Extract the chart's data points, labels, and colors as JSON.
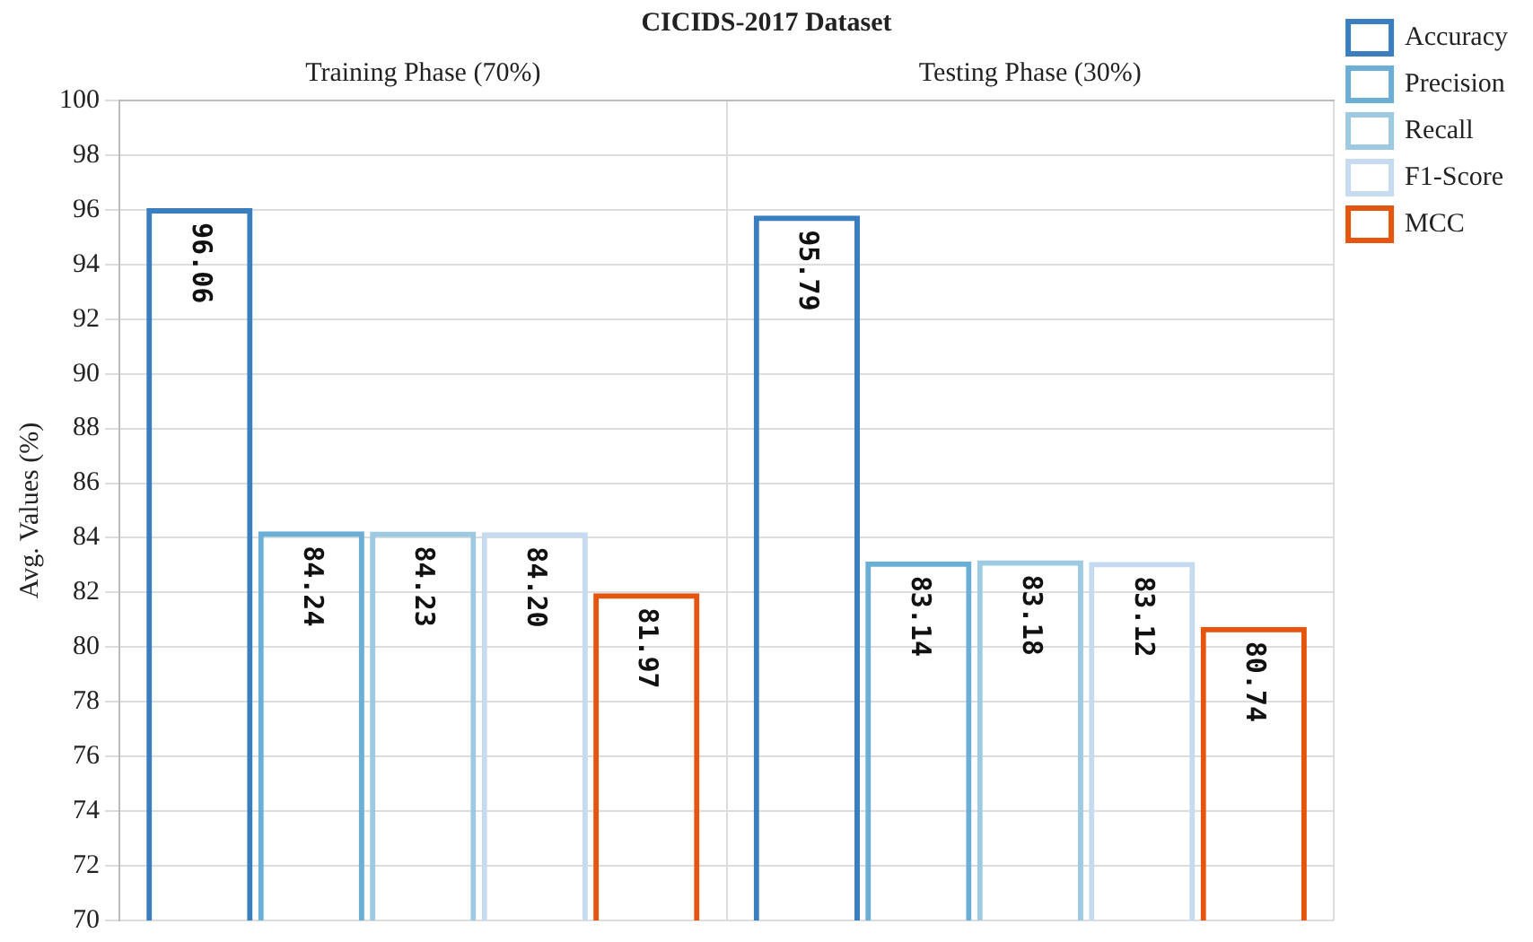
{
  "chart_data": {
    "type": "bar",
    "title": "CICIDS-2017 Dataset",
    "ylabel": "Avg. Values (%)",
    "categories": [
      "Training Phase (70%)",
      "Testing Phase (30%)"
    ],
    "ylim": [
      70,
      100
    ],
    "yticks": [
      70,
      72,
      74,
      76,
      78,
      80,
      82,
      84,
      86,
      88,
      90,
      92,
      94,
      96,
      98,
      100
    ],
    "grid": true,
    "legend": "top right",
    "series": [
      {
        "name": "Accuracy",
        "color": "#3a7ebf",
        "values": [
          96.06,
          95.79
        ],
        "value_labels": [
          "96.06",
          "95.79"
        ]
      },
      {
        "name": "Precision",
        "color": "#6baed6",
        "values": [
          84.24,
          83.14
        ],
        "value_labels": [
          "84.24",
          "83.14"
        ]
      },
      {
        "name": "Recall",
        "color": "#9ecae1",
        "values": [
          84.23,
          83.18
        ],
        "value_labels": [
          "84.23",
          "83.18"
        ]
      },
      {
        "name": "F1-Score",
        "color": "#c6dbef",
        "values": [
          84.2,
          83.12
        ],
        "value_labels": [
          "84.20",
          "83.12"
        ]
      },
      {
        "name": "MCC",
        "color": "#e6550d",
        "values": [
          81.97,
          80.74
        ],
        "value_labels": [
          "81.97",
          "80.74"
        ]
      }
    ]
  }
}
